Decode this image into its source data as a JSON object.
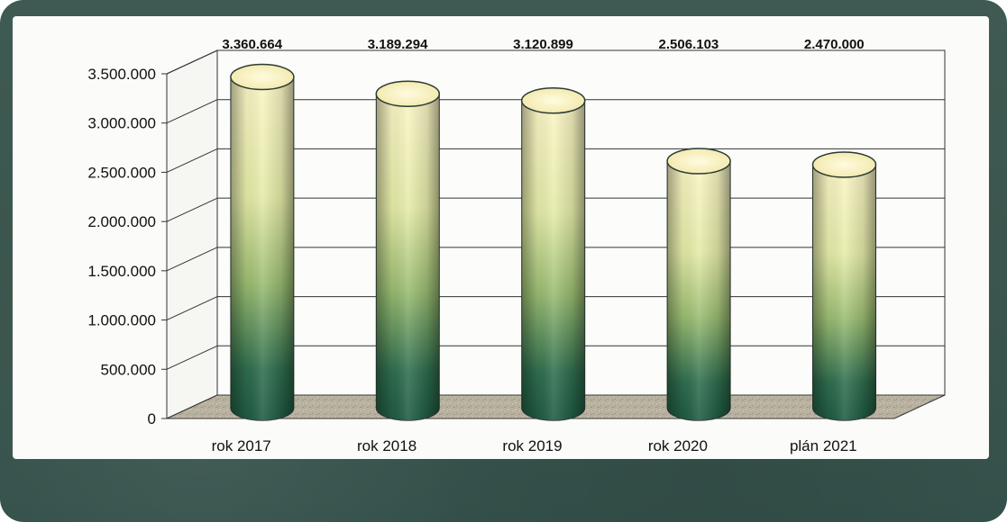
{
  "chart_data": {
    "type": "bar",
    "style": "3d-cylinder",
    "categories": [
      "rok 2017",
      "rok 2018",
      "rok 2019",
      "rok 2020",
      "plán 2021"
    ],
    "values": [
      3360664,
      3189294,
      3120899,
      2506103,
      2470000
    ],
    "data_labels": [
      "3.360.664",
      "3.189.294",
      "3.120.899",
      "2.506.103",
      "2.470.000"
    ],
    "y_ticks": [
      "0",
      "500.000",
      "1.000.000",
      "1.500.000",
      "2.000.000",
      "2.500.000",
      "3.000.000",
      "3.500.000"
    ],
    "ylim": [
      0,
      3500000
    ],
    "grid": true,
    "legend": "none",
    "colors": {
      "bar_top": "#fbf6c6",
      "bar_mid": "#d9e49a",
      "bar_bottom": "#1f5f44",
      "floor": "#b5ae9c",
      "frame": "#3d5851"
    }
  }
}
